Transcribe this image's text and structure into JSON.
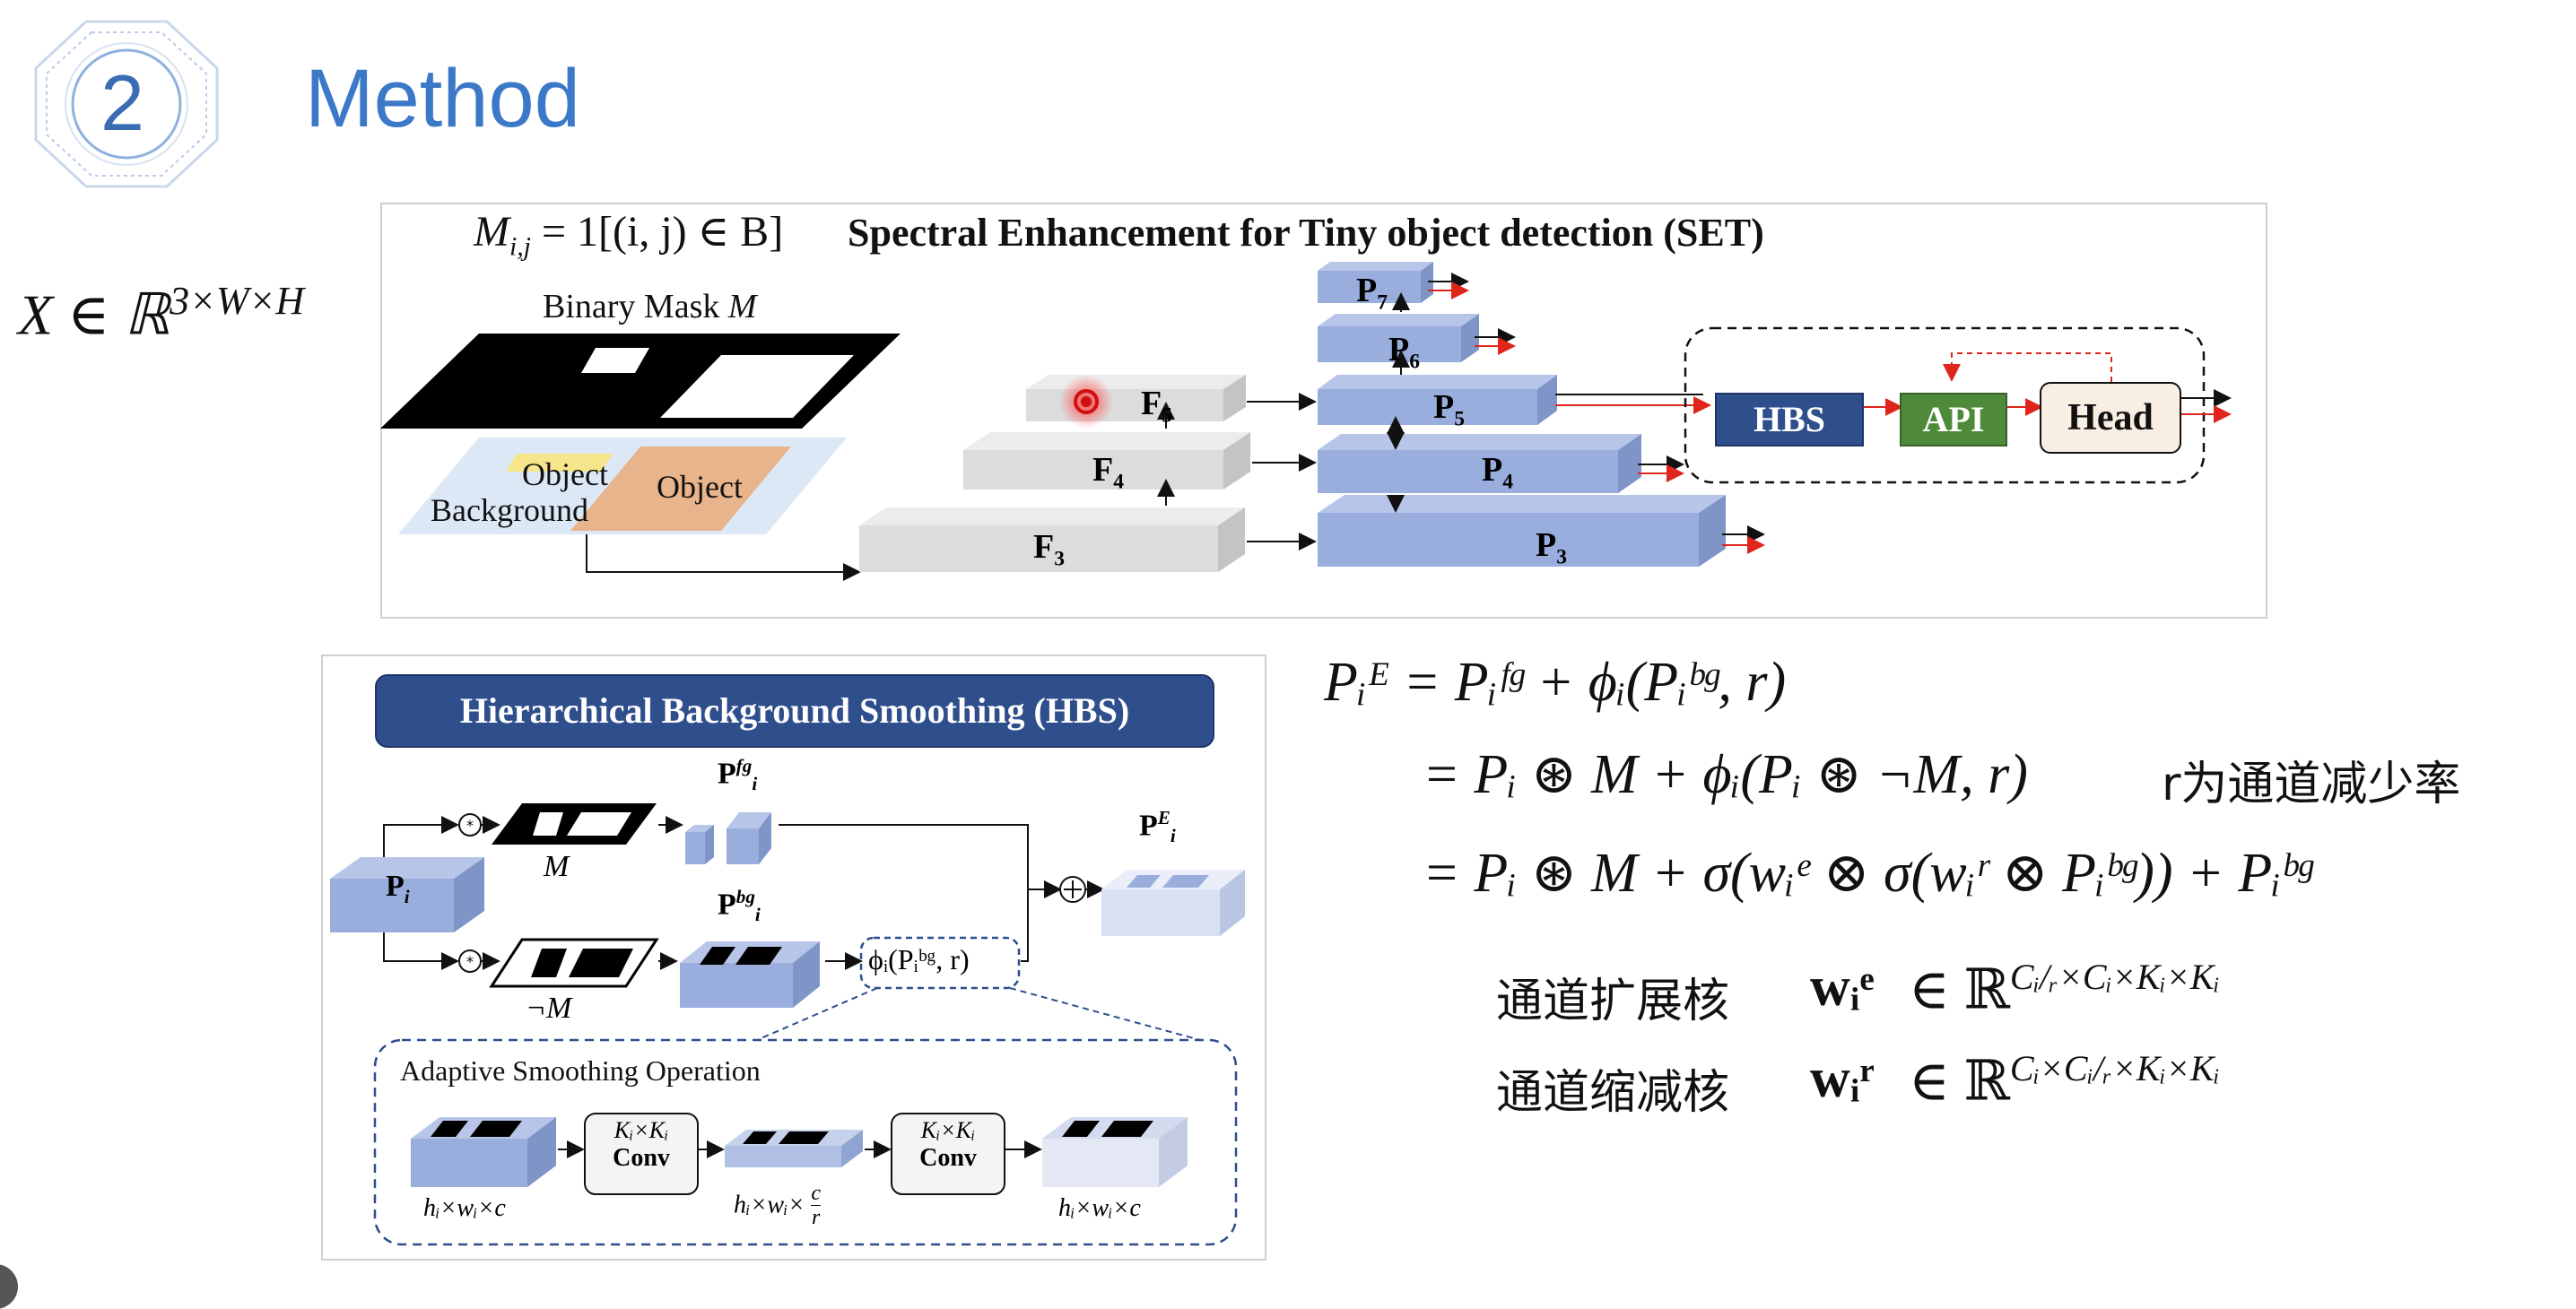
{
  "slide": {
    "section_number": "2",
    "title": "Method"
  },
  "input_eq": "X ∈ ℝ",
  "input_eq_sup": "3×W×H",
  "set_panel": {
    "mask_formula": "M",
    "mask_formula_sub": "i,j",
    "mask_formula_rest": " = 1[(i, j) ∈ B]",
    "title": "Spectral Enhancement for Tiny object detection (SET)",
    "binary_mask_label": "Binary Mask",
    "binary_mask_var": "M",
    "object_label_1": "Object",
    "object_label_2": "Object",
    "background_label": "Background",
    "backbone": [
      {
        "label": "F",
        "sub": "5"
      },
      {
        "label": "F",
        "sub": "4"
      },
      {
        "label": "F",
        "sub": "3"
      }
    ],
    "pyramid": [
      {
        "label": "P",
        "sub": "7"
      },
      {
        "label": "P",
        "sub": "6"
      },
      {
        "label": "P",
        "sub": "5"
      },
      {
        "label": "P",
        "sub": "4"
      },
      {
        "label": "P",
        "sub": "3"
      }
    ],
    "hbs_label": "HBS",
    "api_label": "API",
    "head_label": "Head",
    "colors": {
      "hbs": "#2F4E8C",
      "api": "#4E8A3A",
      "head": "#F8EEE4",
      "arrow_red": "#E0251C",
      "pyramid": "#9AAEDD",
      "backbone": "#DCDCDC"
    }
  },
  "hbs_panel": {
    "title": "Hierarchical Background Smoothing (HBS)",
    "p_i": "P",
    "p_i_sub": "i",
    "p_fg": "P",
    "p_fg_sup": "fg",
    "p_fg_sub": "i",
    "p_bg": "P",
    "p_bg_sup": "bg",
    "p_bg_sub": "i",
    "p_e": "P",
    "p_e_sup": "E",
    "p_e_sub": "i",
    "mask_m": "M",
    "mask_not_m": "¬M",
    "phi_expr": "ϕᵢ(Pᵢᵇᵍ, r)",
    "aso_title": "Adaptive Smoothing Operation",
    "conv_kernel": "Kᵢ×Kᵢ",
    "conv_label": "Conv",
    "dim_1": "hᵢ×wᵢ×c",
    "dim_2": "hᵢ×wᵢ×",
    "dim_2_num": "c",
    "dim_2_den": "r",
    "dim_3": "hᵢ×wᵢ×c"
  },
  "equations": {
    "line1": "Pᵢᴱ = Pᵢᶠᵍ + ϕᵢ(Pᵢᵇᵍ, r)",
    "line2": "= Pᵢ ⊛ M + ϕᵢ(Pᵢ ⊛ ¬M, r)",
    "line2_note": "r为通道减少率",
    "line3": "= Pᵢ ⊛ M + σ(wᵢᵉ ⊗ σ(wᵢʳ ⊗ Pᵢᵇᵍ)) + Pᵢᵇᵍ",
    "expand_label": "通道扩展核",
    "expand_var": "wᵢᵉ",
    "expand_set": "∈  ℝ",
    "expand_dims": "Cᵢ/ᵣ×Cᵢ×Kᵢ×Kᵢ",
    "reduce_label": "通道缩减核",
    "reduce_var": "wᵢʳ",
    "reduce_set": "∈  ℝ",
    "reduce_dims": "Cᵢ×Cᵢ/ᵣ×Kᵢ×Kᵢ"
  }
}
